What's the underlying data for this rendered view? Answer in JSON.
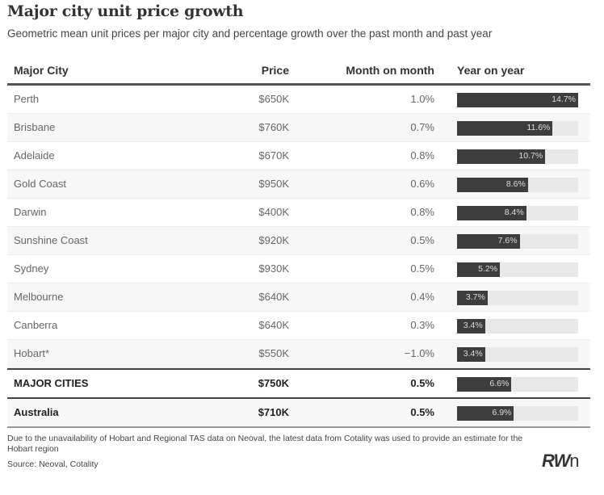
{
  "title": "Major city unit price growth",
  "subtitle": "Geometric mean unit prices per major city and percentage growth over the past month and past year",
  "columns": {
    "city": "Major City",
    "price": "Price",
    "mom": "Month on month",
    "yoy": "Year on year"
  },
  "rows": [
    {
      "city": "Perth",
      "price": "$650K",
      "mom": "1.0%",
      "yoy_label": "14.7%"
    },
    {
      "city": "Brisbane",
      "price": "$760K",
      "mom": "0.7%",
      "yoy_label": "11.6%"
    },
    {
      "city": "Adelaide",
      "price": "$670K",
      "mom": "0.8%",
      "yoy_label": "10.7%"
    },
    {
      "city": "Gold Coast",
      "price": "$950K",
      "mom": "0.6%",
      "yoy_label": "8.6%"
    },
    {
      "city": "Darwin",
      "price": "$400K",
      "mom": "0.8%",
      "yoy_label": "8.4%"
    },
    {
      "city": "Sunshine Coast",
      "price": "$920K",
      "mom": "0.5%",
      "yoy_label": "7.6%"
    },
    {
      "city": "Sydney",
      "price": "$930K",
      "mom": "0.5%",
      "yoy_label": "5.2%"
    },
    {
      "city": "Melbourne",
      "price": "$640K",
      "mom": "0.4%",
      "yoy_label": "3.7%"
    },
    {
      "city": "Canberra",
      "price": "$640K",
      "mom": "0.3%",
      "yoy_label": "3.4%"
    },
    {
      "city": "Hobart*",
      "price": "$550K",
      "mom": "−1.0%",
      "yoy_label": "3.4%"
    }
  ],
  "totals": [
    {
      "city": "MAJOR CITIES",
      "price": "$750K",
      "mom": "0.5%",
      "yoy_label": "6.6%"
    },
    {
      "city": "Australia",
      "price": "$710K",
      "mom": "0.5%",
      "yoy_label": "6.9%"
    }
  ],
  "footnote": "Due to the unavailability of Hobart and Regional TAS data on Neoval, the latest data from Cotality was used to provide an estimate for the Hobart region",
  "source": "Source: Neoval, Cotality",
  "logo": {
    "main": "RW",
    "tail": "n"
  },
  "chart_data": {
    "type": "bar",
    "title": "Major city unit price growth",
    "subtitle": "Geometric mean unit prices per major city and percentage growth over the past month and past year",
    "xlabel": "Year on year",
    "ylabel": "",
    "categories": [
      "Perth",
      "Brisbane",
      "Adelaide",
      "Gold Coast",
      "Darwin",
      "Sunshine Coast",
      "Sydney",
      "Melbourne",
      "Canberra",
      "Hobart*",
      "MAJOR CITIES",
      "Australia"
    ],
    "values": [
      14.7,
      11.6,
      10.7,
      8.6,
      8.4,
      7.6,
      5.2,
      3.7,
      3.4,
      3.4,
      6.6,
      6.9
    ],
    "xlim": [
      0,
      14.7
    ],
    "price": [
      "$650K",
      "$760K",
      "$670K",
      "$950K",
      "$400K",
      "$920K",
      "$930K",
      "$640K",
      "$640K",
      "$550K",
      "$750K",
      "$710K"
    ],
    "month_on_month": [
      1.0,
      0.7,
      0.8,
      0.6,
      0.8,
      0.5,
      0.5,
      0.4,
      0.3,
      -1.0,
      0.5,
      0.5
    ]
  }
}
